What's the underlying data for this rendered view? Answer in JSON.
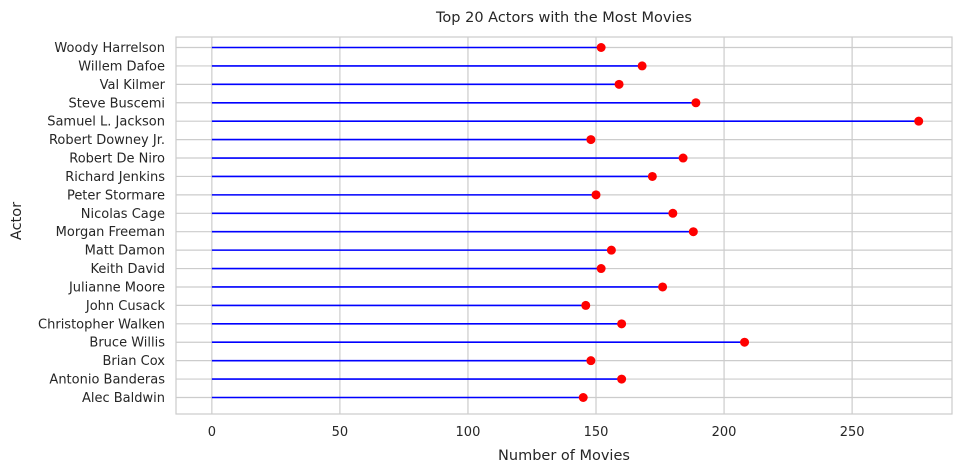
{
  "chart_data": {
    "type": "lollipop",
    "title": "Top 20 Actors with the Most Movies",
    "xlabel": "Number of Movies",
    "ylabel": "Actor",
    "xlim": [
      -14,
      289
    ],
    "xticks": [
      0,
      50,
      100,
      150,
      200,
      250
    ],
    "grid": true,
    "stem_color": "#0000ff",
    "marker_color": "#ff0000",
    "categories": [
      "Woody Harrelson",
      "Willem Dafoe",
      "Val Kilmer",
      "Steve Buscemi",
      "Samuel L. Jackson",
      "Robert Downey Jr.",
      "Robert De Niro",
      "Richard Jenkins",
      "Peter Stormare",
      "Nicolas Cage",
      "Morgan Freeman",
      "Matt Damon",
      "Keith David",
      "Julianne Moore",
      "John Cusack",
      "Christopher Walken",
      "Bruce Willis",
      "Brian Cox",
      "Antonio Banderas",
      "Alec Baldwin"
    ],
    "values": [
      152,
      168,
      159,
      189,
      276,
      148,
      184,
      172,
      150,
      180,
      188,
      156,
      152,
      176,
      146,
      160,
      208,
      148,
      160,
      145
    ]
  }
}
